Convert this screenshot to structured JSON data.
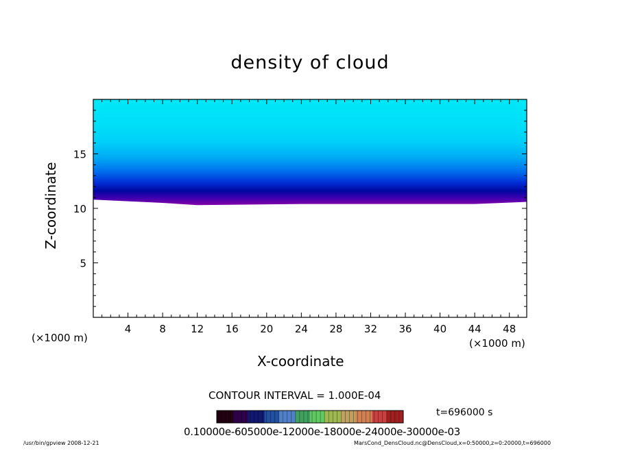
{
  "title": "density of cloud",
  "xlabel": "X-coordinate",
  "ylabel": "Z-coordinate",
  "x_unit_left": "(×1000 m)",
  "x_unit_right": "(×1000 m)",
  "contour_interval": "CONTOUR INTERVAL = 1.000E-04",
  "time_label": "t=696000 s",
  "colorbar_labels": "0.10000e-605000e-12000e-18000e-24000e-30000e-03",
  "footer_left": "/usr/bin/gpview   2008-12-21",
  "footer_right": "MarsCond_DensCloud.nc@DensCloud,x=0:50000,z=0:20000,t=696000",
  "colors": {
    "upper": "#00e0f8",
    "mid": "#0090f0",
    "deep": "#0010a0",
    "base": "#6000a0",
    "frame": "#000000"
  },
  "chart_data": {
    "type": "heatmap",
    "title": "density of cloud",
    "xlabel": "X-coordinate",
    "ylabel": "Z-coordinate",
    "xlim": [
      0,
      50
    ],
    "ylim": [
      0,
      20
    ],
    "x_ticks": [
      4,
      8,
      12,
      16,
      20,
      24,
      28,
      32,
      36,
      40,
      44,
      48
    ],
    "y_ticks": [
      5,
      10,
      15
    ],
    "cloud_base_z": [
      {
        "x": 0,
        "z": 10.8
      },
      {
        "x": 8,
        "z": 10.5
      },
      {
        "x": 12,
        "z": 10.3
      },
      {
        "x": 24,
        "z": 10.4
      },
      {
        "x": 34,
        "z": 10.4
      },
      {
        "x": 44,
        "z": 10.4
      },
      {
        "x": 50,
        "z": 10.6
      }
    ],
    "vertical_gradient": [
      {
        "z": 10.4,
        "color": "#7a00a8"
      },
      {
        "z": 11.0,
        "color": "#3a00b0"
      },
      {
        "z": 11.6,
        "color": "#0008a0"
      },
      {
        "z": 12.4,
        "color": "#0030d8"
      },
      {
        "z": 13.4,
        "color": "#0070ee"
      },
      {
        "z": 14.6,
        "color": "#00a8f4"
      },
      {
        "z": 16.0,
        "color": "#00cef8"
      },
      {
        "z": 17.5,
        "color": "#00def8"
      },
      {
        "z": 20.0,
        "color": "#00e8f8"
      }
    ],
    "colorbar": {
      "labels": [
        "0.1000",
        "0.6000e-04",
        "0.1200e-03",
        "0.1800e-03",
        "0.2400e-03",
        "0.3000e-03"
      ],
      "colors": [
        "#200010",
        "#30004a",
        "#101870",
        "#204fa0",
        "#5080c8",
        "#40a060",
        "#60c860",
        "#a0b850",
        "#c0a060",
        "#d08050",
        "#c84040",
        "#a02020"
      ]
    },
    "contour_interval": "1.000E-04"
  }
}
